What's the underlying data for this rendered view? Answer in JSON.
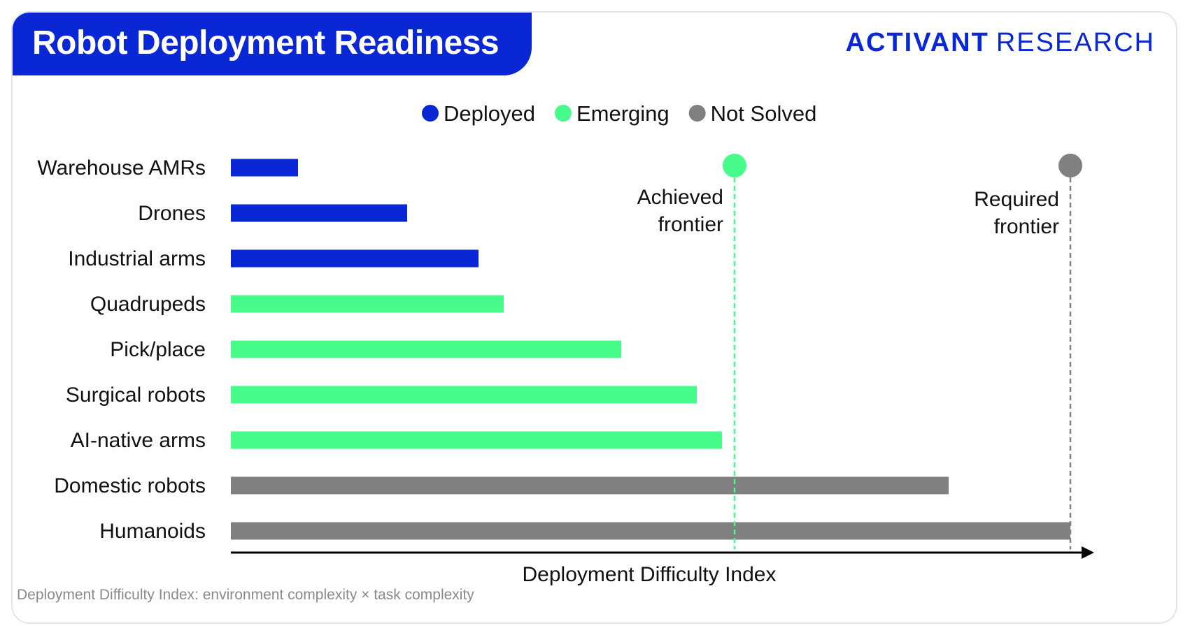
{
  "header": {
    "title": "Robot Deployment Readiness",
    "brand_primary": "ACTIVANT",
    "brand_secondary": "RESEARCH"
  },
  "footnote": "Deployment Difficulty Index: environment complexity × task complexity",
  "colors": {
    "deployed": "#0a27d6",
    "emerging": "#48fc8c",
    "not_solved": "#808080"
  },
  "chart_data": {
    "type": "bar",
    "orientation": "horizontal",
    "xlabel": "Deployment Difficulty Index",
    "xlim": [
      0,
      100
    ],
    "x_ticks_shown": false,
    "legend": {
      "placement": "top-center",
      "entries": [
        {
          "label": "Deployed",
          "status": "deployed"
        },
        {
          "label": "Emerging",
          "status": "emerging"
        },
        {
          "label": "Not Solved",
          "status": "not_solved"
        }
      ]
    },
    "categories": [
      "Warehouse AMRs",
      "Drones",
      "Industrial arms",
      "Quadrupeds",
      "Pick/place",
      "Surgical robots",
      "AI-native arms",
      "Domestic robots",
      "Humanoids"
    ],
    "values": [
      8,
      21,
      29.5,
      32.5,
      46.5,
      55.5,
      58.5,
      85.5,
      100
    ],
    "status": [
      "deployed",
      "deployed",
      "deployed",
      "emerging",
      "emerging",
      "emerging",
      "emerging",
      "not_solved",
      "not_solved"
    ],
    "annotations": [
      {
        "label_line1": "Achieved",
        "label_line2": "frontier",
        "x": 60,
        "status": "emerging",
        "line_style": "dashed"
      },
      {
        "label_line1": "Required",
        "label_line2": "frontier",
        "x": 100,
        "status": "not_solved",
        "line_style": "dashed"
      }
    ]
  }
}
